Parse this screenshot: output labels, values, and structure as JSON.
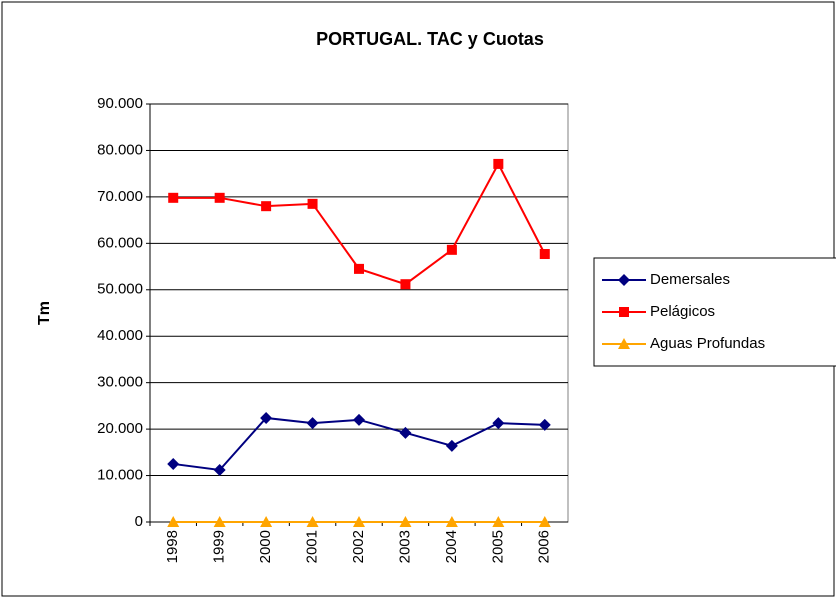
{
  "chart_data": {
    "type": "line",
    "title": "PORTUGAL. TAC y Cuotas",
    "y_label": "Tm",
    "categories": [
      "1998",
      "1999",
      "2000",
      "2001",
      "2002",
      "2003",
      "2004",
      "2005",
      "2006"
    ],
    "series": [
      {
        "name": "Demersales",
        "color": "#000080",
        "marker": "diamond",
        "values": [
          12500,
          11200,
          22400,
          21300,
          22000,
          19200,
          16400,
          21300,
          20900
        ]
      },
      {
        "name": "Pelágicos",
        "color": "#ff0000",
        "marker": "square",
        "values": [
          69800,
          69800,
          68000,
          68500,
          54500,
          51200,
          58600,
          77100,
          57700
        ]
      },
      {
        "name": "Aguas Profundas",
        "color": "#ffa500",
        "marker": "triangle",
        "values": [
          0,
          0,
          0,
          0,
          0,
          0,
          0,
          0,
          0
        ]
      }
    ],
    "ylim": [
      0,
      90000
    ],
    "yticks": [
      0,
      {
        "value": 10000,
        "label": "10.000"
      },
      {
        "value": 20000,
        "label": "20.000"
      },
      {
        "value": 30000,
        "label": "30.000"
      },
      {
        "value": 40000,
        "label": "40.000"
      },
      {
        "value": 50000,
        "label": "50.000"
      },
      {
        "value": 60000,
        "label": "60.000"
      },
      {
        "value": 70000,
        "label": "70.000"
      },
      {
        "value": 80000,
        "label": "80.000"
      },
      {
        "value": 90000,
        "label": "90.000"
      }
    ],
    "grid": true,
    "legend": "right"
  }
}
